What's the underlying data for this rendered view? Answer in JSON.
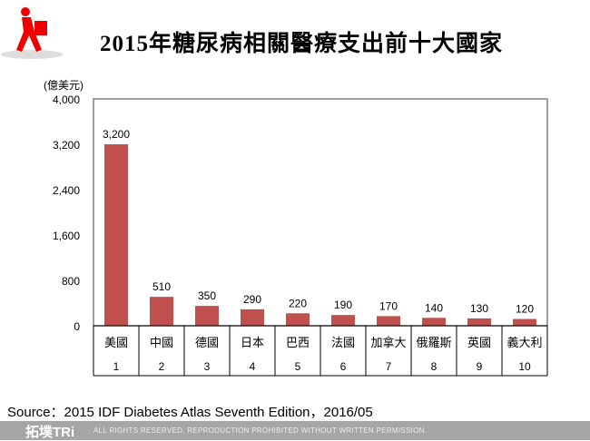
{
  "header": {
    "title": "2015年糖尿病相關醫療支出前十大國家"
  },
  "chart_data": {
    "type": "bar",
    "title": "2015年糖尿病相關醫療支出前十大國家",
    "ylabel": "(億美元)",
    "ylim": [
      0,
      4000
    ],
    "yticks": [
      "0",
      "800",
      "1,600",
      "2,400",
      "3,200",
      "4,000"
    ],
    "ytick_values": [
      0,
      800,
      1600,
      2400,
      3200,
      4000
    ],
    "categories": [
      "美國",
      "中國",
      "德國",
      "日本",
      "巴西",
      "法國",
      "加拿大",
      "俄羅斯",
      "英國",
      "義大利"
    ],
    "ranks": [
      "1",
      "2",
      "3",
      "4",
      "5",
      "6",
      "7",
      "8",
      "9",
      "10"
    ],
    "values": [
      3200,
      510,
      350,
      290,
      220,
      190,
      170,
      140,
      130,
      120
    ],
    "data_labels": [
      "3,200",
      "510",
      "350",
      "290",
      "220",
      "190",
      "170",
      "140",
      "130",
      "120"
    ],
    "bar_color": "#c0504d",
    "grid": false
  },
  "source": "Source：2015 IDF Diabetes Atlas Seventh Edition，2016/05",
  "footer": {
    "brand": "拓墣TRi",
    "rights": "ALL RIGHTS RESERVED. REPRODUCTION PROHIBITED WITHOUT WRITTEN PERMISSION."
  }
}
